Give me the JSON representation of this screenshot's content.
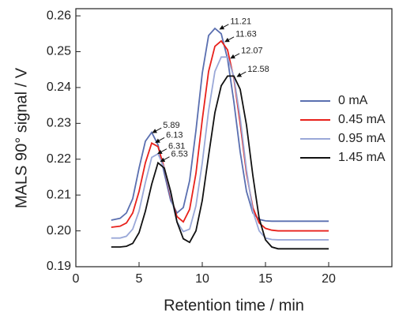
{
  "chart_data": {
    "type": "line",
    "x_label": "Retention time / min",
    "y_label": "MALS 90° signal / V",
    "x": [
      2.8,
      3.5,
      4,
      4.5,
      5,
      5.5,
      6,
      6.5,
      7,
      7.5,
      8,
      8.5,
      9,
      9.5,
      10,
      10.5,
      11,
      11.5,
      12,
      12.5,
      13,
      13.5,
      14,
      14.5,
      15,
      15.5,
      16,
      17,
      18,
      20
    ],
    "series": [
      {
        "name": "0 mA",
        "color": "#5a6fb0",
        "peaks": [
          5.89,
          11.21
        ],
        "values": [
          0.203,
          0.2035,
          0.205,
          0.209,
          0.2175,
          0.225,
          0.2275,
          0.224,
          0.216,
          0.2085,
          0.205,
          0.2065,
          0.214,
          0.228,
          0.244,
          0.2545,
          0.2565,
          0.255,
          0.248,
          0.236,
          0.222,
          0.211,
          0.205,
          0.2032,
          0.2028,
          0.2027,
          0.2027,
          0.2027,
          0.2027,
          0.2027
        ]
      },
      {
        "name": "0.45 mA",
        "color": "#e8211b",
        "peaks": [
          6.13,
          11.63
        ],
        "values": [
          0.201,
          0.2013,
          0.2022,
          0.205,
          0.211,
          0.219,
          0.2245,
          0.2235,
          0.2175,
          0.2095,
          0.204,
          0.2025,
          0.206,
          0.216,
          0.231,
          0.2445,
          0.2515,
          0.253,
          0.2505,
          0.2425,
          0.23,
          0.216,
          0.2065,
          0.2022,
          0.2007,
          0.2002,
          0.2,
          0.2,
          0.2,
          0.2
        ]
      },
      {
        "name": "0.95 mA",
        "color": "#9aa8d8",
        "peaks": [
          6.31,
          12.07
        ],
        "values": [
          0.198,
          0.198,
          0.1985,
          0.2005,
          0.2055,
          0.2135,
          0.2205,
          0.2215,
          0.2175,
          0.21,
          0.2025,
          0.1998,
          0.2005,
          0.207,
          0.219,
          0.2335,
          0.2445,
          0.2485,
          0.2485,
          0.243,
          0.2315,
          0.217,
          0.2055,
          0.2,
          0.198,
          0.1976,
          0.1975,
          0.1975,
          0.1975,
          0.1975
        ]
      },
      {
        "name": "1.45 mA",
        "color": "#111111",
        "peaks": [
          6.53,
          12.58
        ],
        "values": [
          0.1955,
          0.1955,
          0.1957,
          0.1965,
          0.1995,
          0.2055,
          0.213,
          0.219,
          0.2175,
          0.211,
          0.2025,
          0.1978,
          0.1968,
          0.2,
          0.2085,
          0.221,
          0.233,
          0.2405,
          0.2432,
          0.2432,
          0.2395,
          0.2295,
          0.2155,
          0.2035,
          0.1975,
          0.1955,
          0.195,
          0.195,
          0.195,
          0.195
        ]
      }
    ],
    "xlim": [
      0,
      25
    ],
    "xticks": [
      0,
      5,
      10,
      15,
      20
    ],
    "ylim": [
      0.19,
      0.262
    ],
    "yticks": [
      0.19,
      {
        "value": 0.2,
        "label": "0.20"
      },
      0.21,
      0.22,
      0.23,
      0.24,
      0.25,
      0.26
    ],
    "legend": "right"
  }
}
